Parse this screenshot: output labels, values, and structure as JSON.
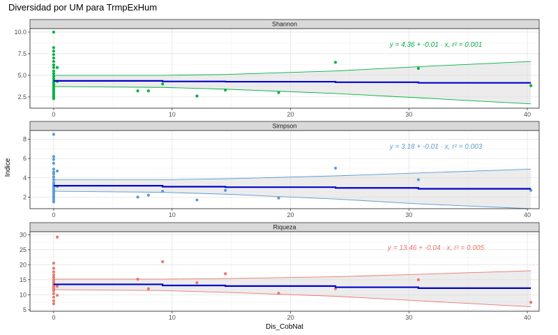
{
  "title": "Diversidad por UM para TrmpExHum",
  "xlabel": "Dis_CobNat",
  "ylabel": "Indice",
  "chart_data": [
    {
      "type": "scatter",
      "facet": "Shannon",
      "color": "#00b140",
      "equation": "y = 4.36 + -0.01 · x,  r² = 0.001",
      "xlim": [
        -2,
        41
      ],
      "ylim": [
        1.2,
        10.4
      ],
      "x_ticks": [
        0,
        10,
        20,
        30,
        40
      ],
      "y_ticks": [
        2.5,
        5.0,
        7.5,
        10.0
      ],
      "y_tick_labels": [
        "2.5",
        "5.0",
        "7.5",
        "10.0"
      ],
      "points": [
        [
          0,
          10.0
        ],
        [
          0,
          8.2
        ],
        [
          0,
          7.8
        ],
        [
          0,
          7.4
        ],
        [
          0,
          7.0
        ],
        [
          0,
          6.6
        ],
        [
          0,
          6.2
        ],
        [
          0,
          5.9
        ],
        [
          0,
          5.5
        ],
        [
          0,
          5.2
        ],
        [
          0,
          4.9
        ],
        [
          0,
          4.6
        ],
        [
          0,
          4.3
        ],
        [
          0,
          4.1
        ],
        [
          0,
          3.9
        ],
        [
          0,
          3.7
        ],
        [
          0,
          3.5
        ],
        [
          0,
          3.3
        ],
        [
          0,
          3.1
        ],
        [
          0,
          2.9
        ],
        [
          0,
          2.7
        ],
        [
          0,
          2.5
        ],
        [
          0,
          2.3
        ],
        [
          0.3,
          5.9
        ],
        [
          0.3,
          4.3
        ],
        [
          7.1,
          3.2
        ],
        [
          8.0,
          3.2
        ],
        [
          9.2,
          4.0
        ],
        [
          12.1,
          2.6
        ],
        [
          14.5,
          3.3
        ],
        [
          19.0,
          3.0
        ],
        [
          23.8,
          6.5
        ],
        [
          30.8,
          5.8
        ],
        [
          40.3,
          3.8
        ]
      ],
      "fit": [
        [
          0,
          4.36
        ],
        [
          9.2,
          4.36
        ],
        [
          9.2,
          4.29
        ],
        [
          14.5,
          4.29
        ],
        [
          14.5,
          4.26
        ],
        [
          23.8,
          4.26
        ],
        [
          23.8,
          4.2
        ],
        [
          30.8,
          4.2
        ],
        [
          30.8,
          4.13
        ],
        [
          40.3,
          4.13
        ]
      ],
      "ci_upper": [
        [
          0,
          5.0
        ],
        [
          9.2,
          5.0
        ],
        [
          9.2,
          5.0
        ],
        [
          14.5,
          5.1
        ],
        [
          23.8,
          5.5
        ],
        [
          30.8,
          6.0
        ],
        [
          40.3,
          6.6
        ]
      ],
      "ci_lower": [
        [
          0,
          3.7
        ],
        [
          9.2,
          3.6
        ],
        [
          14.5,
          3.4
        ],
        [
          23.8,
          2.9
        ],
        [
          30.8,
          2.4
        ],
        [
          40.3,
          1.7
        ]
      ]
    },
    {
      "type": "scatter",
      "facet": "Simpson",
      "color": "#5b9bd5",
      "equation": "y = 3.18 + -0.01 · x,  r² = 0.003",
      "xlim": [
        -2,
        41
      ],
      "ylim": [
        0.8,
        8.9
      ],
      "x_ticks": [
        0,
        10,
        20,
        30,
        40
      ],
      "y_ticks": [
        2,
        4,
        6,
        8
      ],
      "y_tick_labels": [
        "2",
        "4",
        "6",
        "8"
      ],
      "points": [
        [
          0,
          8.5
        ],
        [
          0,
          6.2
        ],
        [
          0,
          5.9
        ],
        [
          0,
          5.5
        ],
        [
          0,
          4.9
        ],
        [
          0,
          4.6
        ],
        [
          0,
          4.4
        ],
        [
          0,
          4.1
        ],
        [
          0,
          3.8
        ],
        [
          0,
          3.5
        ],
        [
          0,
          3.3
        ],
        [
          0,
          3.1
        ],
        [
          0,
          2.9
        ],
        [
          0,
          2.7
        ],
        [
          0,
          2.5
        ],
        [
          0,
          2.3
        ],
        [
          0,
          2.1
        ],
        [
          0,
          1.9
        ],
        [
          0,
          1.7
        ],
        [
          0,
          1.5
        ],
        [
          0.3,
          4.7
        ],
        [
          0.3,
          3.1
        ],
        [
          7.1,
          2.0
        ],
        [
          8.0,
          2.2
        ],
        [
          9.2,
          2.6
        ],
        [
          12.1,
          1.7
        ],
        [
          14.5,
          2.7
        ],
        [
          19.0,
          1.9
        ],
        [
          23.8,
          5.0
        ],
        [
          30.8,
          3.8
        ],
        [
          40.3,
          2.7
        ]
      ],
      "fit": [
        [
          0,
          3.18
        ],
        [
          9.2,
          3.18
        ],
        [
          9.2,
          3.08
        ],
        [
          14.5,
          3.08
        ],
        [
          14.5,
          3.03
        ],
        [
          23.8,
          3.03
        ],
        [
          23.8,
          2.95
        ],
        [
          30.8,
          2.95
        ],
        [
          30.8,
          2.86
        ],
        [
          40.3,
          2.86
        ]
      ],
      "ci_upper": [
        [
          0,
          3.8
        ],
        [
          9.2,
          3.8
        ],
        [
          14.5,
          3.9
        ],
        [
          23.8,
          4.2
        ],
        [
          30.8,
          4.5
        ],
        [
          40.3,
          4.9
        ]
      ],
      "ci_lower": [
        [
          0,
          2.6
        ],
        [
          9.2,
          2.5
        ],
        [
          14.5,
          2.3
        ],
        [
          23.8,
          1.8
        ],
        [
          30.8,
          1.3
        ],
        [
          40.3,
          0.8
        ]
      ]
    },
    {
      "type": "scatter",
      "facet": "Riqueza",
      "color": "#e8776f",
      "equation": "y = 13.46 + -0.04 · x,  r² = 0.005",
      "xlim": [
        -2,
        41
      ],
      "ylim": [
        4.5,
        31
      ],
      "x_ticks": [
        0,
        10,
        20,
        30,
        40
      ],
      "y_ticks": [
        5,
        10,
        15,
        20,
        25,
        30
      ],
      "y_tick_labels": [
        "5",
        "10",
        "15",
        "20",
        "25",
        "30"
      ],
      "points": [
        [
          0,
          20.5
        ],
        [
          0,
          18.8
        ],
        [
          0,
          17.6
        ],
        [
          0,
          16.6
        ],
        [
          0,
          15.8
        ],
        [
          0,
          15.0
        ],
        [
          0,
          14.3
        ],
        [
          0,
          13.7
        ],
        [
          0,
          13.2
        ],
        [
          0,
          12.6
        ],
        [
          0,
          12.0
        ],
        [
          0,
          11.4
        ],
        [
          0,
          10.4
        ],
        [
          0,
          9.2
        ],
        [
          0,
          8.0
        ],
        [
          0,
          7.0
        ],
        [
          0.3,
          29.2
        ],
        [
          0.3,
          12.8
        ],
        [
          0.3,
          9.8
        ],
        [
          7.1,
          15.2
        ],
        [
          8.0,
          12.0
        ],
        [
          9.2,
          21.0
        ],
        [
          12.1,
          14.0
        ],
        [
          14.5,
          17.0
        ],
        [
          19.0,
          10.5
        ],
        [
          23.8,
          12.0
        ],
        [
          30.8,
          15.0
        ],
        [
          40.3,
          7.5
        ]
      ],
      "fit": [
        [
          0,
          13.46
        ],
        [
          9.2,
          13.46
        ],
        [
          9.2,
          13.1
        ],
        [
          14.5,
          13.1
        ],
        [
          14.5,
          12.9
        ],
        [
          23.8,
          12.9
        ],
        [
          23.8,
          12.5
        ],
        [
          30.8,
          12.5
        ],
        [
          30.8,
          12.2
        ],
        [
          40.3,
          12.2
        ]
      ],
      "ci_upper": [
        [
          0,
          15.2
        ],
        [
          9.2,
          15.2
        ],
        [
          14.5,
          15.4
        ],
        [
          23.8,
          16.0
        ],
        [
          30.8,
          16.8
        ],
        [
          40.3,
          18.0
        ]
      ],
      "ci_lower": [
        [
          0,
          11.7
        ],
        [
          9.2,
          11.4
        ],
        [
          14.5,
          10.8
        ],
        [
          23.8,
          9.5
        ],
        [
          30.8,
          8.0
        ],
        [
          40.3,
          6.0
        ]
      ]
    }
  ]
}
